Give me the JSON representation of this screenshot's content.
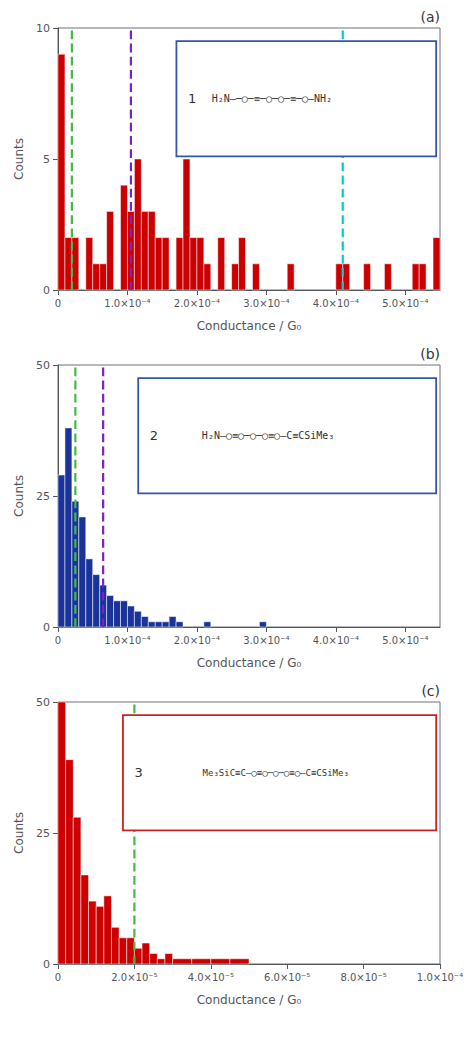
{
  "chart_data": [
    {
      "type": "histogram",
      "xlabel": "Conductance / G₀",
      "ylabel": "Counts",
      "color": "#cc0000",
      "xlim": [
        0,
        0.00055
      ],
      "ylim": [
        0,
        10
      ],
      "yticks": [
        0,
        5,
        10
      ],
      "xticks": [
        0,
        {
          "value": 0.0001,
          "label": "1.0×10⁻⁴"
        },
        {
          "value": 0.0002,
          "label": "2.0×10⁻⁴"
        },
        {
          "value": 0.0003,
          "label": "3.0×10⁻⁴"
        },
        {
          "value": 0.0004,
          "label": "4.0×10⁻⁴"
        },
        {
          "value": 0.0005,
          "label": "5.0×10⁻⁴"
        }
      ],
      "grid": false,
      "annotations": [
        "(a)"
      ],
      "inset": {
        "label": "1",
        "text": "H₂N—─○─≡─○─○─≡─○—NH₂",
        "color": "#3355aa"
      },
      "vlines": [
        {
          "x": 2e-05,
          "color": "#44bb44",
          "line_style": "dashed"
        },
        {
          "x": 0.000105,
          "color": "#7722cc",
          "line_style": "dashed"
        },
        {
          "x": 0.00041,
          "color": "#00ccdd",
          "line_style": "dashed"
        }
      ],
      "bins": [
        0.0,
        1e-05,
        2e-05,
        3e-05,
        4e-05,
        5e-05,
        6e-05,
        7e-05,
        8e-05,
        9e-05,
        0.0001,
        0.00011,
        0.00012,
        0.00013,
        0.00014,
        0.00015,
        0.00016,
        0.00017,
        0.00018,
        0.00019,
        0.0002,
        0.00021,
        0.00022,
        0.00023,
        0.00024,
        0.00025,
        0.00026,
        0.00027,
        0.00028,
        0.00029,
        0.0003,
        0.00031,
        0.00032,
        0.00033,
        0.00034,
        0.00035,
        0.00036,
        0.00037,
        0.00038,
        0.00039,
        0.0004,
        0.00041,
        0.00042,
        0.00043,
        0.00044,
        0.00045,
        0.00046,
        0.00047,
        0.00048,
        0.00049,
        0.0005,
        0.00051,
        0.00052,
        0.00053,
        0.00054,
        0.00055
      ],
      "counts": [
        9,
        2,
        2,
        0,
        2,
        1,
        1,
        3,
        0,
        4,
        3,
        5,
        3,
        3,
        2,
        2,
        0,
        2,
        5,
        2,
        2,
        1,
        0,
        2,
        0,
        1,
        2,
        0,
        1,
        0,
        0,
        0,
        0,
        1,
        0,
        0,
        0,
        0,
        0,
        0,
        1,
        1,
        0,
        0,
        1,
        0,
        0,
        1,
        0,
        0,
        0,
        1,
        1,
        0,
        2
      ]
    },
    {
      "type": "histogram",
      "xlabel": "Conductance / G₀",
      "ylabel": "Counts",
      "color": "#1a3399",
      "xlim": [
        0,
        0.00055
      ],
      "ylim": [
        0,
        50
      ],
      "yticks": [
        0,
        25,
        50
      ],
      "xticks": [
        0,
        {
          "value": 0.0001,
          "label": "1.0×10⁻⁴"
        },
        {
          "value": 0.0002,
          "label": "2.0×10⁻⁴"
        },
        {
          "value": 0.0003,
          "label": "3.0×10⁻⁴"
        },
        {
          "value": 0.0004,
          "label": "4.0×10⁻⁴"
        },
        {
          "value": 0.0005,
          "label": "5.0×10⁻⁴"
        }
      ],
      "grid": false,
      "annotations": [
        "(b)"
      ],
      "inset": {
        "label": "2",
        "text": "H₂N—○≡○─○─○≡○—C≡CSiMe₃",
        "color": "#3355aa"
      },
      "vlines": [
        {
          "x": 2.5e-05,
          "color": "#44bb44",
          "line_style": "dashed"
        },
        {
          "x": 6.5e-05,
          "color": "#7722cc",
          "line_style": "dashed"
        }
      ],
      "bins": [
        0.0,
        1e-05,
        2e-05,
        3e-05,
        4e-05,
        5e-05,
        6e-05,
        7e-05,
        8e-05,
        9e-05,
        0.0001,
        0.00011,
        0.00012,
        0.00013,
        0.00014,
        0.00015,
        0.00016,
        0.00017,
        0.00018,
        0.00019,
        0.0002,
        0.00021,
        0.00022,
        0.00023,
        0.00024,
        0.00025,
        0.00026,
        0.00027,
        0.00028,
        0.00029,
        0.0003,
        0.00035,
        0.0004,
        0.00045,
        0.0005,
        0.00055
      ],
      "counts": [
        29,
        38,
        24,
        21,
        13,
        10,
        8,
        6,
        5,
        5,
        4,
        3,
        2,
        1,
        1,
        1,
        2,
        1,
        0,
        0,
        0,
        1,
        0,
        0,
        0,
        0,
        0,
        0,
        0,
        1,
        0,
        0,
        0,
        0,
        0
      ]
    },
    {
      "type": "histogram",
      "xlabel": "Conductance / G₀",
      "ylabel": "Counts",
      "color": "#cc0000",
      "xlim": [
        0,
        0.0001
      ],
      "ylim": [
        0,
        50
      ],
      "yticks": [
        0,
        25,
        50
      ],
      "xticks": [
        0,
        {
          "value": 2e-05,
          "label": "2.0×10⁻⁵"
        },
        {
          "value": 4e-05,
          "label": "4.0×10⁻⁵"
        },
        {
          "value": 6e-05,
          "label": "6.0×10⁻⁵"
        },
        {
          "value": 8e-05,
          "label": "8.0×10⁻⁵"
        },
        {
          "value": 0.0001,
          "label": "1.0×10⁻⁴"
        }
      ],
      "grid": false,
      "annotations": [
        "(c)"
      ],
      "inset": {
        "label": "3",
        "text": "Me₃SiC≡C—○≡○─○─○≡○—C≡CSiMe₃",
        "color": "#cc2222"
      },
      "vlines": [
        {
          "x": 2e-05,
          "color": "#44bb44",
          "line_style": "dashed"
        }
      ],
      "bins": [
        0.0,
        2e-06,
        4e-06,
        6e-06,
        8e-06,
        1e-05,
        1.2e-05,
        1.4e-05,
        1.6e-05,
        1.8e-05,
        2e-05,
        2.2e-05,
        2.4e-05,
        2.6e-05,
        2.8e-05,
        3e-05,
        3.5e-05,
        4e-05,
        4.5e-05,
        5e-05,
        0.0001
      ],
      "counts": [
        50,
        39,
        28,
        17,
        12,
        11,
        13,
        7,
        5,
        5,
        3,
        4,
        2,
        1,
        2,
        1,
        1,
        1,
        1,
        0
      ]
    }
  ]
}
